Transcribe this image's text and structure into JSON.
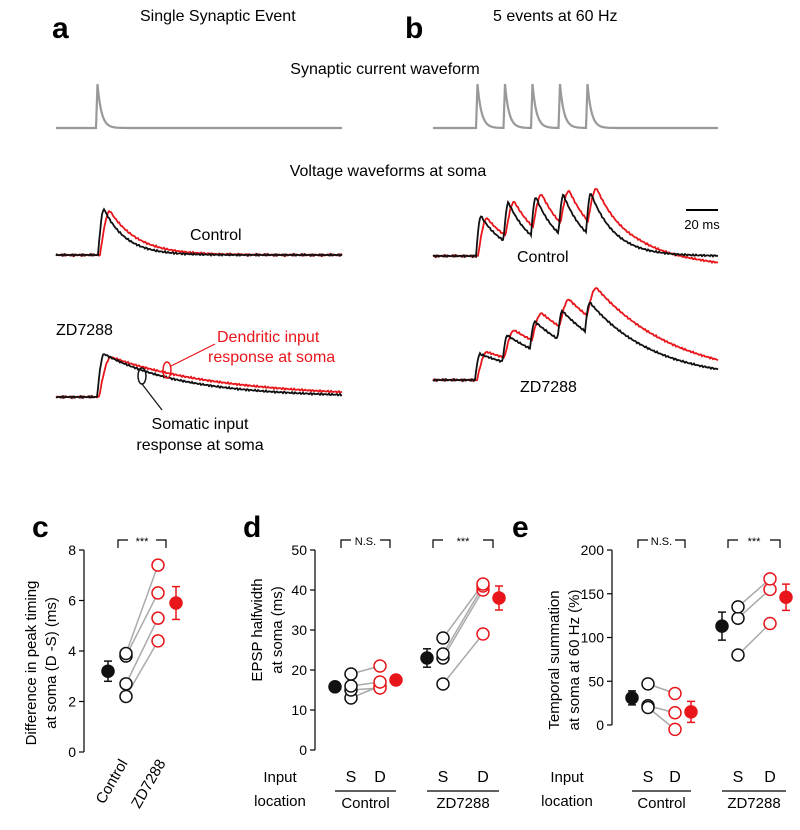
{
  "panels": {
    "a": {
      "letter": "a",
      "header": "Single Synaptic Event"
    },
    "b": {
      "letter": "b",
      "header": "5 events at 60 Hz"
    }
  },
  "section_titles": {
    "current": "Synaptic current waveform",
    "voltage": "Voltage waveforms at soma"
  },
  "trace_labels": {
    "control_a": "Control",
    "control_b": "Control",
    "zd_a": "ZD7288",
    "zd_b": "ZD7288",
    "dendritic_1": "Dendritic input",
    "dendritic_2": "response at soma",
    "somatic_1": "Somatic input",
    "somatic_2": "response at soma",
    "scale_bar": "20 ms"
  },
  "colors": {
    "control_trace": "#111111",
    "dendritic": "#e8161b",
    "current": "#999999",
    "connector": "#aaaaaa"
  },
  "chart_data": [
    {
      "panel": "c",
      "type": "scatter",
      "ylabel_line1": "Difference in peak timing",
      "ylabel_line2": "at soma (D -S) (ms)",
      "ylim": [
        0,
        8
      ],
      "yticks": [
        0,
        2,
        4,
        6,
        8
      ],
      "categories": [
        "Control",
        "ZD7288"
      ],
      "significance": "***",
      "pairs": [
        [
          2.2,
          4.4
        ],
        [
          2.7,
          5.3
        ],
        [
          3.8,
          6.3
        ],
        [
          3.9,
          7.4
        ]
      ],
      "means": [
        {
          "value": 3.2,
          "error": 0.4
        },
        {
          "value": 5.9,
          "error": 0.65
        }
      ]
    },
    {
      "panel": "d",
      "type": "scatter",
      "ylabel_line1": "EPSP halfwidth",
      "ylabel_line2": "at soma (ms)",
      "ylim": [
        0,
        50
      ],
      "yticks": [
        0,
        10,
        20,
        30,
        40,
        50
      ],
      "input_label_1": "Input",
      "input_label_2": "location",
      "x_labels": [
        "S",
        "D",
        "S",
        "D"
      ],
      "groups": [
        "Control",
        "ZD7288"
      ],
      "significance": [
        "N.S.",
        "***"
      ],
      "control_pairs": [
        [
          13,
          16
        ],
        [
          15,
          15.5
        ],
        [
          16,
          17
        ],
        [
          19,
          21
        ]
      ],
      "zd_pairs": [
        [
          16.5,
          29
        ],
        [
          23,
          40
        ],
        [
          24,
          41
        ],
        [
          28,
          41.5
        ]
      ],
      "means": [
        {
          "value": 15.8,
          "error": 1.2
        },
        {
          "value": 17.5,
          "error": 1.2
        },
        {
          "value": 23,
          "error": 2.3
        },
        {
          "value": 38,
          "error": 3
        }
      ]
    },
    {
      "panel": "e",
      "type": "scatter",
      "ylabel_line1": "Temporal summation",
      "ylabel_line2": "at soma at 60 Hz (%)",
      "ylim": [
        0,
        200
      ],
      "yticks": [
        0,
        50,
        100,
        150,
        200
      ],
      "input_label_1": "Input",
      "input_label_2": "location",
      "x_labels": [
        "S",
        "D",
        "S",
        "D"
      ],
      "groups": [
        "Control",
        "ZD7288"
      ],
      "significance": [
        "N.S.",
        "***"
      ],
      "control_pairs": [
        [
          47,
          36
        ],
        [
          22,
          14
        ],
        [
          20,
          -5
        ]
      ],
      "zd_pairs": [
        [
          80,
          116
        ],
        [
          122,
          155
        ],
        [
          135,
          167
        ]
      ],
      "means": [
        {
          "value": 31,
          "error": 8
        },
        {
          "value": 15,
          "error": 12
        },
        {
          "value": 113,
          "error": 16
        },
        {
          "value": 146,
          "error": 15
        }
      ]
    }
  ]
}
